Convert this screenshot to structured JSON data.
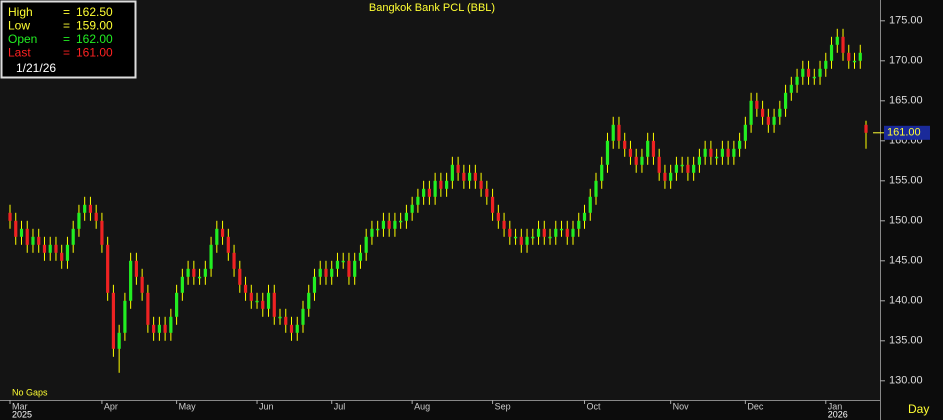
{
  "chart_data": {
    "type": "candlestick",
    "title": "Bangkok Bank PCL (BBL)",
    "info": [
      {
        "label": "High",
        "value": "162.50",
        "color": "#ffff33"
      },
      {
        "label": "Low",
        "value": "159.00",
        "color": "#ffff33"
      },
      {
        "label": "Open",
        "value": "162.00",
        "color": "#22ee22"
      },
      {
        "label": "Last",
        "value": "161.00",
        "color": "#ff2222"
      }
    ],
    "info_date": "1/21/26",
    "note": "No Gaps",
    "period": "Day",
    "up_color": "#22ee22",
    "down_color": "#ee2222",
    "wick_color": "#ffff00",
    "open": [
      151,
      150,
      148,
      149,
      147,
      148,
      147,
      146,
      147,
      146,
      145,
      147,
      149,
      151,
      152,
      151,
      150,
      147,
      141,
      134,
      136,
      140,
      145,
      143,
      141,
      137,
      136,
      137,
      136,
      138,
      141,
      143,
      144,
      143,
      143,
      144,
      147,
      149,
      148,
      146,
      144,
      142,
      141,
      140,
      140,
      139,
      141,
      138,
      138,
      137,
      136,
      137,
      139,
      141,
      143,
      144,
      143,
      144,
      145,
      145,
      143,
      145,
      146,
      148,
      149,
      149,
      150,
      149,
      150,
      150,
      151,
      152,
      153,
      154,
      153,
      155,
      154,
      155,
      157,
      156,
      155,
      156,
      155,
      154,
      153,
      151,
      150,
      149,
      148,
      148,
      147,
      148,
      148,
      149,
      148,
      148,
      149,
      149,
      148,
      149,
      150,
      151,
      153,
      155,
      157,
      160,
      162,
      160,
      159,
      158,
      157,
      158,
      160,
      158,
      156,
      155,
      156,
      157,
      157,
      156,
      157,
      158,
      159,
      158,
      158,
      159,
      158,
      159,
      160,
      162,
      165,
      164,
      163,
      162,
      163,
      164,
      166,
      167,
      168,
      169,
      168,
      168,
      169,
      170,
      172,
      173,
      171,
      170,
      170,
      162
    ],
    "high": [
      152,
      151,
      150,
      150,
      149,
      149,
      148,
      148,
      148,
      147,
      148,
      150,
      152,
      153,
      153,
      152,
      151,
      148,
      142,
      137,
      141,
      146,
      146,
      144,
      142,
      138,
      138,
      138,
      139,
      142,
      144,
      145,
      145,
      144,
      145,
      148,
      150,
      150,
      149,
      147,
      145,
      143,
      142,
      141,
      141,
      142,
      142,
      139,
      139,
      138,
      138,
      140,
      142,
      144,
      145,
      145,
      145,
      146,
      146,
      146,
      146,
      147,
      149,
      150,
      150,
      151,
      151,
      151,
      151,
      152,
      153,
      154,
      155,
      155,
      156,
      156,
      156,
      158,
      158,
      157,
      157,
      157,
      156,
      155,
      154,
      152,
      151,
      150,
      149,
      149,
      149,
      149,
      150,
      150,
      149,
      150,
      150,
      150,
      150,
      151,
      152,
      154,
      156,
      158,
      161,
      163,
      163,
      161,
      160,
      159,
      159,
      161,
      161,
      159,
      157,
      157,
      158,
      158,
      158,
      158,
      159,
      160,
      160,
      159,
      160,
      160,
      160,
      161,
      163,
      166,
      166,
      165,
      164,
      164,
      165,
      167,
      168,
      169,
      170,
      170,
      169,
      170,
      171,
      173,
      174,
      174,
      172,
      171,
      172,
      162.5
    ],
    "low": [
      149,
      147,
      147,
      146,
      146,
      146,
      145,
      145,
      145,
      144,
      144,
      146,
      148,
      150,
      150,
      149,
      146,
      140,
      133,
      131,
      135,
      139,
      142,
      140,
      136,
      135,
      135,
      135,
      135,
      137,
      140,
      142,
      142,
      142,
      142,
      143,
      146,
      147,
      145,
      143,
      141,
      140,
      139,
      139,
      138,
      138,
      137,
      137,
      136,
      135,
      135,
      136,
      138,
      140,
      142,
      142,
      142,
      143,
      144,
      142,
      142,
      144,
      145,
      147,
      148,
      148,
      148,
      148,
      149,
      149,
      150,
      151,
      152,
      152,
      152,
      153,
      153,
      154,
      155,
      154,
      154,
      154,
      153,
      152,
      150,
      149,
      148,
      147,
      147,
      146,
      146,
      147,
      147,
      147,
      147,
      147,
      148,
      147,
      147,
      148,
      149,
      150,
      152,
      154,
      156,
      159,
      159,
      158,
      157,
      156,
      156,
      157,
      157,
      155,
      154,
      154,
      155,
      156,
      155,
      155,
      156,
      157,
      157,
      157,
      157,
      157,
      157,
      158,
      159,
      161,
      163,
      162,
      161,
      161,
      162,
      163,
      165,
      166,
      167,
      167,
      167,
      167,
      168,
      169,
      171,
      170,
      169,
      169,
      169,
      159
    ],
    "close": [
      150,
      148,
      149,
      147,
      148,
      147,
      146,
      147,
      146,
      145,
      147,
      149,
      151,
      152,
      151,
      150,
      147,
      141,
      134,
      136,
      140,
      145,
      143,
      141,
      137,
      136,
      137,
      136,
      138,
      141,
      143,
      144,
      143,
      143,
      144,
      147,
      149,
      148,
      146,
      144,
      142,
      141,
      140,
      140,
      139,
      141,
      138,
      138,
      137,
      136,
      137,
      139,
      141,
      143,
      144,
      143,
      144,
      145,
      145,
      143,
      145,
      146,
      148,
      149,
      149,
      150,
      149,
      150,
      150,
      151,
      152,
      153,
      154,
      153,
      155,
      154,
      155,
      157,
      156,
      155,
      156,
      155,
      154,
      153,
      151,
      150,
      149,
      148,
      148,
      147,
      148,
      148,
      149,
      148,
      148,
      149,
      149,
      148,
      149,
      150,
      151,
      153,
      155,
      157,
      160,
      162,
      160,
      159,
      158,
      157,
      158,
      160,
      158,
      156,
      155,
      156,
      157,
      157,
      156,
      157,
      158,
      159,
      158,
      158,
      159,
      158,
      159,
      160,
      162,
      165,
      164,
      163,
      162,
      163,
      164,
      166,
      167,
      168,
      169,
      168,
      168,
      169,
      170,
      172,
      173,
      171,
      170,
      170,
      171,
      161
    ],
    "xticks": [
      {
        "value": 0,
        "label": "Mar"
      },
      {
        "value": 16,
        "label": "Apr"
      },
      {
        "value": 29,
        "label": "May"
      },
      {
        "value": 43,
        "label": "Jun"
      },
      {
        "value": 56,
        "label": "Jul"
      },
      {
        "value": 70,
        "label": "Aug"
      },
      {
        "value": 84,
        "label": "Sep"
      },
      {
        "value": 100,
        "label": "Oct"
      },
      {
        "value": 115,
        "label": "Nov"
      },
      {
        "value": 128,
        "label": "Dec"
      },
      {
        "value": 142,
        "label": "Jan"
      }
    ],
    "year_ticks": [
      {
        "value": 0,
        "label": "2025"
      },
      {
        "value": 142,
        "label": "2026"
      }
    ],
    "ylim": [
      127.6,
      177.6
    ],
    "yticks": [
      {
        "value": 130,
        "label": "130.00"
      },
      {
        "value": 135,
        "label": "135.00"
      },
      {
        "value": 140,
        "label": "140.00"
      },
      {
        "value": 145,
        "label": "145.00"
      },
      {
        "value": 150,
        "label": "150.00"
      },
      {
        "value": 155,
        "label": "155.00"
      },
      {
        "value": 160,
        "label": "160.00"
      },
      {
        "value": 165,
        "label": "165.00"
      },
      {
        "value": 170,
        "label": "170.00"
      },
      {
        "value": 175,
        "label": "175.00"
      }
    ],
    "last_marker": {
      "value": 161,
      "label": "161.00"
    }
  }
}
